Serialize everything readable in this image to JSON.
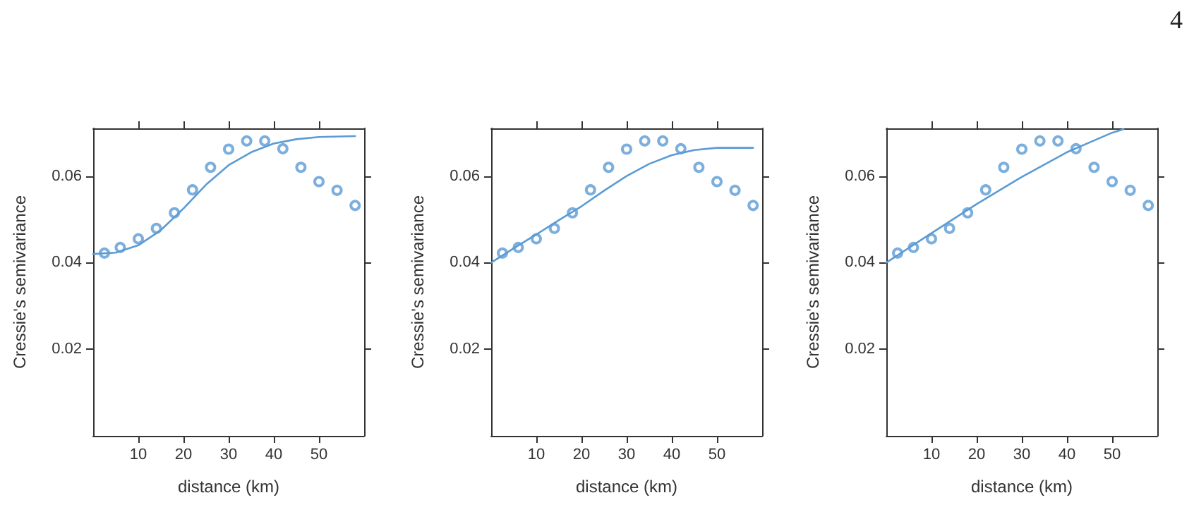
{
  "chart_data": [
    {
      "type": "scatter",
      "xlabel": "distance (km)",
      "ylabel": "Cressie's semivariance",
      "xlim": [
        0,
        60
      ],
      "ylim": [
        0,
        0.071
      ],
      "xticks": [
        10,
        20,
        30,
        40,
        50
      ],
      "yticks": [
        0.02,
        0.04,
        0.06
      ],
      "grid": false,
      "series": [
        {
          "type": "scatter",
          "color": "#5b9bd5",
          "marker": "circle",
          "x": [
            2.5,
            6,
            10,
            14,
            18,
            22,
            26,
            30,
            34,
            38,
            42,
            46,
            50,
            54,
            58
          ],
          "values": [
            0.0422,
            0.0435,
            0.0455,
            0.0479,
            0.0515,
            0.0568,
            0.062,
            0.0662,
            0.0681,
            0.0681,
            0.0663,
            0.062,
            0.0587,
            0.0567,
            0.0532
          ]
        },
        {
          "type": "line",
          "marker": "none",
          "color": "#5b9bd5",
          "line_style": "solid",
          "x": [
            0,
            5,
            10,
            15,
            20,
            25,
            30,
            35,
            40,
            45,
            50,
            58
          ],
          "values": [
            0.042,
            0.0423,
            0.044,
            0.0475,
            0.0525,
            0.058,
            0.0625,
            0.0655,
            0.0675,
            0.0685,
            0.069,
            0.0692
          ]
        }
      ]
    },
    {
      "type": "scatter",
      "xlabel": "distance (km)",
      "ylabel": "Cressie's semivariance",
      "xlim": [
        0,
        60
      ],
      "ylim": [
        0,
        0.071
      ],
      "xticks": [
        10,
        20,
        30,
        40,
        50
      ],
      "yticks": [
        0.02,
        0.04,
        0.06
      ],
      "grid": false,
      "series": [
        {
          "type": "scatter",
          "color": "#5b9bd5",
          "marker": "circle",
          "x": [
            2.5,
            6,
            10,
            14,
            18,
            22,
            26,
            30,
            34,
            38,
            42,
            46,
            50,
            54,
            58
          ],
          "values": [
            0.0422,
            0.0435,
            0.0455,
            0.0479,
            0.0515,
            0.0568,
            0.062,
            0.0662,
            0.0681,
            0.0681,
            0.0663,
            0.062,
            0.0587,
            0.0567,
            0.0532
          ]
        },
        {
          "type": "line",
          "marker": "none",
          "color": "#5b9bd5",
          "line_style": "solid",
          "x": [
            0,
            5,
            10,
            15,
            20,
            25,
            30,
            35,
            40,
            45,
            50,
            58
          ],
          "values": [
            0.04,
            0.0433,
            0.0465,
            0.0498,
            0.053,
            0.0566,
            0.06,
            0.0628,
            0.0648,
            0.066,
            0.0665,
            0.0665
          ]
        }
      ]
    },
    {
      "type": "scatter",
      "xlabel": "distance (km)",
      "ylabel": "Cressie's semivariance",
      "xlim": [
        0,
        60
      ],
      "ylim": [
        0,
        0.071
      ],
      "xticks": [
        10,
        20,
        30,
        40,
        50
      ],
      "yticks": [
        0.02,
        0.04,
        0.06
      ],
      "grid": false,
      "annotations": [
        "4"
      ],
      "series": [
        {
          "type": "scatter",
          "color": "#5b9bd5",
          "marker": "circle",
          "x": [
            2.5,
            6,
            10,
            14,
            18,
            22,
            26,
            30,
            34,
            38,
            42,
            46,
            50,
            54,
            58
          ],
          "values": [
            0.0422,
            0.0435,
            0.0455,
            0.0479,
            0.0515,
            0.0568,
            0.062,
            0.0662,
            0.0681,
            0.0681,
            0.0663,
            0.062,
            0.0587,
            0.0567,
            0.0532
          ]
        },
        {
          "type": "line",
          "marker": "none",
          "color": "#5b9bd5",
          "line_style": "solid",
          "x": [
            0,
            10,
            20,
            30,
            40,
            50,
            52.5
          ],
          "values": [
            0.04,
            0.0468,
            0.0535,
            0.0598,
            0.0655,
            0.07,
            0.0708
          ]
        }
      ]
    }
  ]
}
